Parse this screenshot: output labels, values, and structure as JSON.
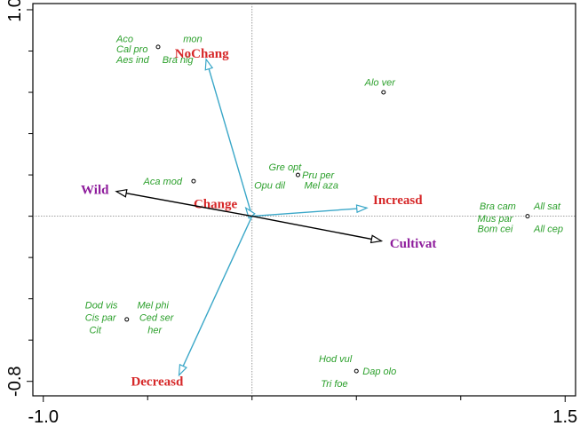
{
  "colors": {
    "site_text": "#2ca02c",
    "site_point": "#000000",
    "arrow_blue": "#3aa7c8",
    "arrow_black": "#000000",
    "label_red": "#d62728",
    "label_purple": "#8e1c9c",
    "refline": "#808080"
  },
  "chart_data": {
    "type": "scatter",
    "x_range": [
      -1.05,
      1.55
    ],
    "y_range": [
      -0.87,
      1.03
    ],
    "x_ticks": [
      {
        "value": -1.0,
        "label": "-1.0"
      },
      {
        "value": 1.5,
        "label": "1.5"
      }
    ],
    "y_ticks": [
      {
        "value": 1.0,
        "label": "1.0"
      },
      {
        "value": -0.8,
        "label": "-0.8"
      }
    ],
    "grid": false,
    "reference_lines": {
      "x": 0,
      "y": 0
    },
    "sites": [
      {
        "x": -0.45,
        "y": 0.82,
        "labels": [
          {
            "text": "Aco",
            "dx": -0.2,
            "dy": 0.04
          },
          {
            "text": "Cal pro",
            "dx": -0.2,
            "dy": -0.01
          },
          {
            "text": "Aes ind",
            "dx": -0.2,
            "dy": -0.06
          },
          {
            "text": "Bra nig",
            "dx": 0.02,
            "dy": -0.06
          },
          {
            "text": "mon",
            "dx": 0.12,
            "dy": 0.04
          }
        ]
      },
      {
        "x": 0.63,
        "y": 0.6,
        "labels": [
          {
            "text": "Alo ver",
            "dx": -0.09,
            "dy": 0.05
          }
        ]
      },
      {
        "x": -0.28,
        "y": 0.17,
        "labels": [
          {
            "text": "Aca mod",
            "dx": -0.24,
            "dy": 0
          }
        ]
      },
      {
        "x": 0.22,
        "y": 0.2,
        "labels": [
          {
            "text": "Gre opt",
            "dx": -0.14,
            "dy": 0.04
          },
          {
            "text": "Pru per",
            "dx": 0.02,
            "dy": 0
          },
          {
            "text": "Opu dil",
            "dx": -0.21,
            "dy": -0.05
          },
          {
            "text": "Mel aza",
            "dx": 0.03,
            "dy": -0.05
          }
        ]
      },
      {
        "x": 1.32,
        "y": 0,
        "labels": [
          {
            "text": "Bra cam",
            "dx": -0.23,
            "dy": 0.05
          },
          {
            "text": "All sat",
            "dx": 0.03,
            "dy": 0.05
          },
          {
            "text": "Mus par",
            "dx": -0.24,
            "dy": -0.01
          },
          {
            "text": "Bom cei",
            "dx": -0.24,
            "dy": -0.06
          },
          {
            "text": "All cep",
            "dx": 0.03,
            "dy": -0.06
          }
        ]
      },
      {
        "x": -0.6,
        "y": -0.5,
        "labels": [
          {
            "text": "Dod vis",
            "dx": -0.2,
            "dy": 0.07
          },
          {
            "text": "Mel phi",
            "dx": 0.05,
            "dy": 0.07
          },
          {
            "text": "Cis par",
            "dx": -0.2,
            "dy": 0.01
          },
          {
            "text": "Ced ser",
            "dx": 0.06,
            "dy": 0.01
          },
          {
            "text": "Cit",
            "dx": -0.18,
            "dy": -0.05
          },
          {
            "text": "her",
            "dx": 0.1,
            "dy": -0.05
          }
        ]
      },
      {
        "x": 0.5,
        "y": -0.75,
        "labels": [
          {
            "text": "Hod vul",
            "dx": -0.18,
            "dy": 0.06
          },
          {
            "text": "Dap olo",
            "dx": 0.03,
            "dy": 0
          },
          {
            "text": "Tri foe",
            "dx": -0.17,
            "dy": -0.06
          }
        ]
      }
    ],
    "vectors": [
      {
        "name": "NoChang",
        "x": -0.22,
        "y": 0.76,
        "color_key": "arrow_blue",
        "label_color_key": "label_red",
        "lx": -0.37,
        "ly": 0.79
      },
      {
        "name": "Increasd",
        "x": 0.55,
        "y": 0.04,
        "color_key": "arrow_blue",
        "label_color_key": "label_red",
        "lx": 0.58,
        "ly": 0.08
      },
      {
        "name": "Change",
        "x": -0.03,
        "y": 0.04,
        "color_key": "arrow_blue",
        "label_color_key": "label_red",
        "lx": -0.28,
        "ly": 0.06
      },
      {
        "name": "Decreasd",
        "x": -0.35,
        "y": -0.77,
        "color_key": "arrow_blue",
        "label_color_key": "label_red",
        "lx": -0.58,
        "ly": -0.8
      },
      {
        "name": "Wild",
        "x": -0.65,
        "y": 0.12,
        "color_key": "arrow_black",
        "label_color_key": "label_purple",
        "lx": -0.82,
        "ly": 0.13
      },
      {
        "name": "Cultivat",
        "x": 0.62,
        "y": -0.12,
        "color_key": "arrow_black",
        "label_color_key": "label_purple",
        "lx": 0.66,
        "ly": -0.13
      }
    ]
  }
}
